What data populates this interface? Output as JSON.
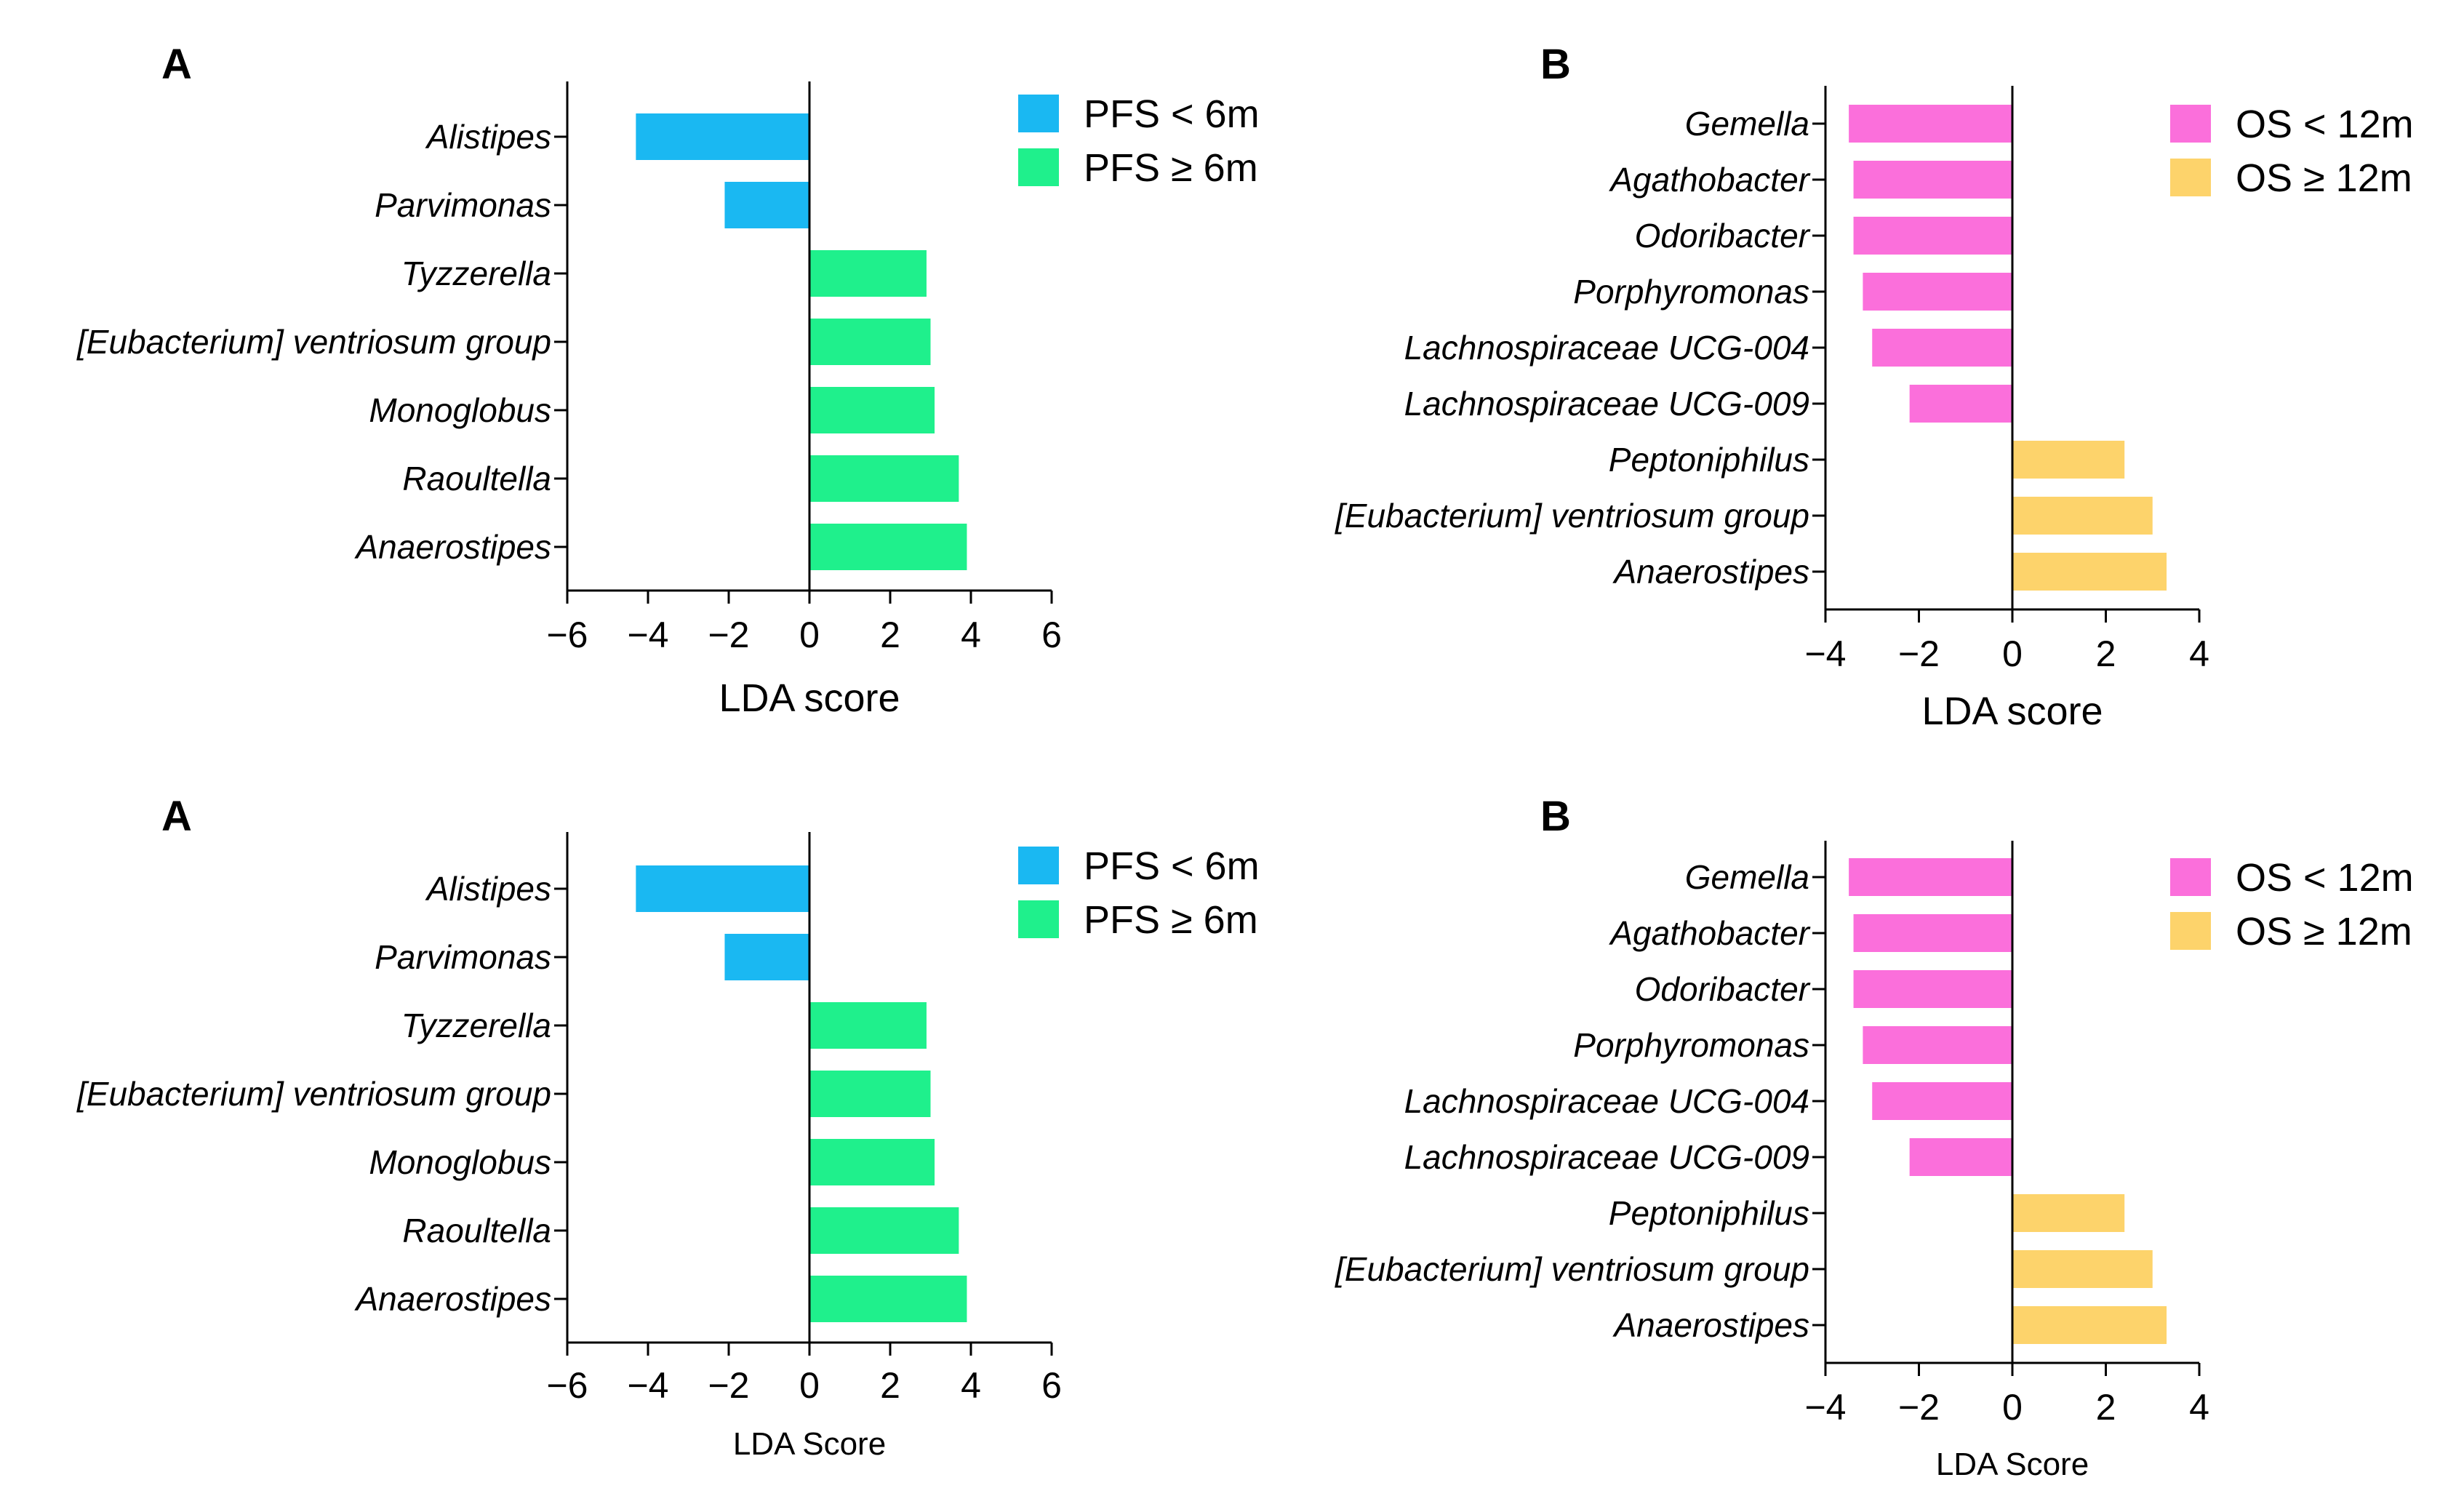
{
  "chart_data": [
    {
      "type": "bar",
      "orientation": "horizontal",
      "panel_label": "A",
      "categories": [
        "Alistipes",
        "Parvimonas",
        "Tyzzerella",
        "[Eubacterium] ventriosum group",
        "Monoglobus",
        "Raoultella",
        "Anaerostipes"
      ],
      "values": [
        -4.3,
        -2.1,
        2.9,
        3.0,
        3.1,
        3.7,
        3.9
      ],
      "series": [
        {
          "name": "PFS < 6m",
          "color": "#1ab8f2",
          "values": [
            -4.3,
            -2.1,
            null,
            null,
            null,
            null,
            null
          ]
        },
        {
          "name": "PFS ≥ 6m",
          "color": "#1ff08c",
          "values": [
            null,
            null,
            2.9,
            3.0,
            3.1,
            3.7,
            3.9
          ]
        }
      ],
      "xlabel": "LDA score",
      "xlim": [
        -6,
        6
      ],
      "xticks": [
        -6,
        -4,
        -2,
        0,
        2,
        4,
        6
      ],
      "xtick_labels": [
        "−6",
        "−4",
        "−2",
        "0",
        "2",
        "4",
        "6"
      ],
      "legend": "top-right",
      "grid": false
    },
    {
      "type": "bar",
      "orientation": "horizontal",
      "panel_label": "B",
      "categories": [
        "Gemella",
        "Agathobacter",
        "Odoribacter",
        "Porphyromonas",
        "Lachnospiraceae UCG-004",
        "Lachnospiraceae UCG-009",
        "Peptoniphilus",
        "[Eubacterium] ventriosum group",
        "Anaerostipes"
      ],
      "values": [
        -3.5,
        -3.4,
        -3.4,
        -3.2,
        -3.0,
        -2.2,
        2.4,
        3.0,
        3.3
      ],
      "series": [
        {
          "name": "OS < 12m",
          "color": "#fb6fdb",
          "values": [
            -3.5,
            -3.4,
            -3.4,
            -3.2,
            -3.0,
            -2.2,
            null,
            null,
            null
          ]
        },
        {
          "name": "OS ≥ 12m",
          "color": "#fdd36b",
          "values": [
            null,
            null,
            null,
            null,
            null,
            null,
            2.4,
            3.0,
            3.3
          ]
        }
      ],
      "xlabel": "LDA score",
      "xlim": [
        -4,
        4
      ],
      "xticks": [
        -4,
        -2,
        0,
        2,
        4
      ],
      "xtick_labels": [
        "−4",
        "−2",
        "0",
        "2",
        "4"
      ],
      "legend": "top-right",
      "grid": false
    },
    {
      "type": "bar",
      "orientation": "horizontal",
      "panel_label": "A",
      "categories": [
        "Alistipes",
        "Parvimonas",
        "Tyzzerella",
        "[Eubacterium] ventriosum group",
        "Monoglobus",
        "Raoultella",
        "Anaerostipes"
      ],
      "values": [
        -4.3,
        -2.1,
        2.9,
        3.0,
        3.1,
        3.7,
        3.9
      ],
      "series": [
        {
          "name": "PFS < 6m",
          "color": "#1ab8f2",
          "values": [
            -4.3,
            -2.1,
            null,
            null,
            null,
            null,
            null
          ]
        },
        {
          "name": "PFS ≥ 6m",
          "color": "#1ff08c",
          "values": [
            null,
            null,
            2.9,
            3.0,
            3.1,
            3.7,
            3.9
          ]
        }
      ],
      "xlabel": "LDA Score",
      "xlim": [
        -6,
        6
      ],
      "xticks": [
        -6,
        -4,
        -2,
        0,
        2,
        4,
        6
      ],
      "xtick_labels": [
        "−6",
        "−4",
        "−2",
        "0",
        "2",
        "4",
        "6"
      ],
      "legend": "top-right",
      "grid": false
    },
    {
      "type": "bar",
      "orientation": "horizontal",
      "panel_label": "B",
      "categories": [
        "Gemella",
        "Agathobacter",
        "Odoribacter",
        "Porphyromonas",
        "Lachnospiraceae UCG-004",
        "Lachnospiraceae UCG-009",
        "Peptoniphilus",
        "[Eubacterium] ventriosum group",
        "Anaerostipes"
      ],
      "values": [
        -3.5,
        -3.4,
        -3.4,
        -3.2,
        -3.0,
        -2.2,
        2.4,
        3.0,
        3.3
      ],
      "series": [
        {
          "name": "OS < 12m",
          "color": "#fb6fdb",
          "values": [
            -3.5,
            -3.4,
            -3.4,
            -3.2,
            -3.0,
            -2.2,
            null,
            null,
            null
          ]
        },
        {
          "name": "OS ≥ 12m",
          "color": "#fdd36b",
          "values": [
            null,
            null,
            null,
            null,
            null,
            null,
            2.4,
            3.0,
            3.3
          ]
        }
      ],
      "xlabel": "LDA Score",
      "xlim": [
        -4,
        4
      ],
      "xticks": [
        -4,
        -2,
        0,
        2,
        4
      ],
      "xtick_labels": [
        "−4",
        "−2",
        "0",
        "2",
        "4"
      ],
      "legend": "top-right",
      "grid": false
    }
  ]
}
